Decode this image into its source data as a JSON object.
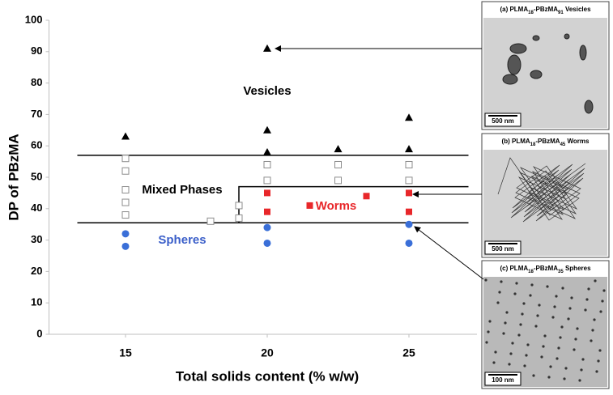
{
  "chart_data": {
    "type": "scatter",
    "xlabel": "Total solids content (% w/w)",
    "ylabel": "DP of PBzMA",
    "xlim": [
      12.3,
      27.4
    ],
    "ylim": [
      0,
      100
    ],
    "xticks": [
      15,
      20,
      25
    ],
    "yticks": [
      0,
      10,
      20,
      30,
      40,
      50,
      60,
      70,
      80,
      90,
      100
    ],
    "series": [
      {
        "name": "Vesicles",
        "marker": "triangle",
        "color": "#000000",
        "label_color": "#000000",
        "x": [
          15,
          20,
          20,
          20,
          22.5,
          25,
          25
        ],
        "values": [
          63,
          91,
          65,
          58,
          59,
          69,
          59
        ]
      },
      {
        "name": "Mixed Phases",
        "marker": "open-square",
        "color": "#8c8c8c",
        "label_color": "#000000",
        "x": [
          15,
          15,
          15,
          15,
          15,
          18,
          19,
          19,
          20,
          20,
          22.5,
          22.5,
          25,
          25
        ],
        "values": [
          56,
          52,
          46,
          42,
          38,
          36,
          41,
          37,
          54,
          49,
          54,
          49,
          54,
          49
        ]
      },
      {
        "name": "Worms",
        "marker": "square",
        "color": "#e8272a",
        "label_color": "#e8272a",
        "x": [
          20,
          20,
          21.5,
          23.5,
          25,
          25
        ],
        "values": [
          45,
          39,
          41,
          44,
          45,
          39
        ]
      },
      {
        "name": "Spheres",
        "marker": "circle",
        "color": "#3a6fd8",
        "label_color": "#3b5fc9",
        "x": [
          15,
          15,
          20,
          20,
          25,
          25
        ],
        "values": [
          32,
          28,
          34,
          29,
          35,
          29
        ]
      }
    ],
    "boundaries": [
      {
        "x": [
          13.3,
          27.1
        ],
        "values": [
          57,
          57
        ]
      },
      {
        "x": [
          13.3,
          27.1
        ],
        "values": [
          35.5,
          35.5
        ]
      },
      {
        "x": [
          19,
          19,
          27.1
        ],
        "values": [
          35.5,
          47,
          47
        ]
      }
    ]
  },
  "panels": [
    {
      "caption": [
        "(a) PLMA",
        "18",
        "-PBzMA",
        "91",
        " Vesicles"
      ],
      "scale_bar": "500 nm"
    },
    {
      "caption": [
        "(b) PLMA",
        "18",
        "-PBzMA",
        "45",
        " Worms"
      ],
      "scale_bar": "500 nm"
    },
    {
      "caption": [
        "(c) PLMA",
        "18",
        "-PBzMA",
        "35",
        " Spheres"
      ],
      "scale_bar": "100 nm"
    }
  ]
}
